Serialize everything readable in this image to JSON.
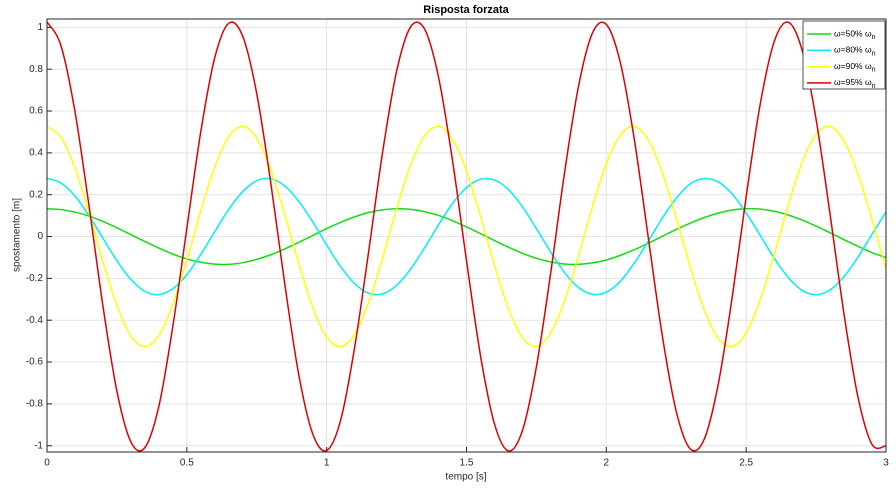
{
  "chart_data": {
    "type": "line",
    "title": "Risposta forzata",
    "x_label": "tempo [s]",
    "y_label": "spostamento [m]",
    "x": [
      0,
      0.05,
      0.1,
      0.15,
      0.2,
      0.25,
      0.3,
      0.35,
      0.4,
      0.45,
      0.5,
      0.55,
      0.6,
      0.65,
      0.7,
      0.75,
      0.8,
      0.85,
      0.9,
      0.95,
      1,
      1.05,
      1.1,
      1.15,
      1.2,
      1.25,
      1.3,
      1.35,
      1.4,
      1.45,
      1.5,
      1.55,
      1.6,
      1.65,
      1.7,
      1.75,
      1.8,
      1.85,
      1.9,
      1.95,
      2,
      2.05,
      2.1,
      2.15,
      2.2,
      2.25,
      2.3,
      2.35,
      2.4,
      2.45,
      2.5,
      2.55,
      2.6,
      2.65,
      2.7,
      2.75,
      2.8,
      2.85,
      2.9,
      2.95,
      3
    ],
    "series": [
      {
        "name": "ω=50% ωn",
        "color": "#11dd11",
        "values": [
          0.133,
          0.129,
          0.117,
          0.098,
          0.072,
          0.042,
          0.009,
          -0.024,
          -0.055,
          -0.084,
          -0.107,
          -0.123,
          -0.132,
          -0.133,
          -0.125,
          -0.109,
          -0.087,
          -0.059,
          -0.028,
          0.005,
          0.038,
          0.068,
          0.094,
          0.115,
          0.128,
          0.133,
          0.13,
          0.119,
          0.101,
          0.076,
          0.046,
          0.014,
          -0.019,
          -0.051,
          -0.08,
          -0.104,
          -0.121,
          -0.131,
          -0.133,
          -0.126,
          -0.112,
          -0.09,
          -0.063,
          -0.032,
          0.001,
          0.034,
          0.064,
          0.091,
          0.112,
          0.127,
          0.133,
          0.131,
          0.121,
          0.103,
          0.079,
          0.05,
          0.018,
          -0.015,
          -0.047,
          -0.077,
          -0.101
        ]
      },
      {
        "name": "ω=80% ωn",
        "color": "#00f0f0",
        "values": [
          0.278,
          0.256,
          0.194,
          0.101,
          -0.008,
          -0.116,
          -0.205,
          -0.262,
          -0.277,
          -0.249,
          -0.182,
          -0.085,
          0.024,
          0.13,
          0.215,
          0.267,
          0.276,
          0.242,
          0.169,
          0.07,
          -0.04,
          -0.144,
          -0.225,
          -0.271,
          -0.274,
          -0.233,
          -0.156,
          -0.054,
          0.056,
          0.158,
          0.234,
          0.274,
          0.27,
          0.224,
          0.142,
          0.038,
          -0.072,
          -0.171,
          -0.243,
          -0.276,
          -0.266,
          -0.214,
          -0.127,
          -0.022,
          0.088,
          0.183,
          0.252,
          0.277,
          0.261,
          0.203,
          0.113,
          0.006,
          -0.103,
          -0.195,
          -0.257,
          -0.278,
          -0.255,
          -0.191,
          -0.098,
          0.011,
          0.118
        ]
      },
      {
        "name": "ω=90% ωn",
        "color": "#ffff00",
        "values": [
          0.526,
          0.474,
          0.327,
          0.115,
          -0.12,
          -0.331,
          -0.476,
          -0.526,
          -0.472,
          -0.324,
          -0.111,
          0.124,
          0.334,
          0.478,
          0.526,
          0.47,
          0.32,
          0.107,
          -0.128,
          -0.338,
          -0.48,
          -0.526,
          -0.468,
          -0.316,
          -0.102,
          0.132,
          0.341,
          0.481,
          0.526,
          0.466,
          0.313,
          0.098,
          -0.137,
          -0.345,
          -0.483,
          -0.525,
          -0.463,
          -0.309,
          -0.094,
          0.141,
          0.348,
          0.485,
          0.526,
          0.462,
          0.306,
          0.089,
          -0.145,
          -0.351,
          -0.486,
          -0.525,
          -0.459,
          -0.302,
          -0.086,
          0.149,
          0.354,
          0.488,
          0.525,
          0.457,
          0.299,
          0.081,
          -0.154
        ]
      },
      {
        "name": "ω=95% ωn",
        "color": "#dd0000",
        "values": [
          1.026,
          0.912,
          0.597,
          0.149,
          -0.332,
          -0.74,
          -0.982,
          -1.009,
          -0.811,
          -0.429,
          0.039,
          0.502,
          0.856,
          1.02,
          0.957,
          0.683,
          0.258,
          -0.225,
          -0.659,
          -0.943,
          -1.023,
          -0.878,
          -0.53,
          -0.073,
          0.403,
          0.79,
          1.002,
          0.992,
          0.762,
          0.363,
          -0.115,
          -0.569,
          -0.896,
          -1.025,
          -0.927,
          -0.622,
          -0.184,
          0.3,
          0.715,
          0.972,
          1.014,
          0.832,
          0.465,
          -0.005,
          -0.473,
          -0.836,
          -1.015,
          -0.969,
          -0.707,
          -0.291,
          0.191,
          0.631,
          0.931,
          1.025,
          0.891,
          0.56,
          0.106,
          -0.372,
          -0.769,
          -0.994,
          -1.0
        ]
      }
    ],
    "xlim": [
      0,
      3
    ],
    "ylim": [
      -1.03,
      1.04
    ],
    "xticks": [
      0,
      0.5,
      1,
      1.5,
      2,
      2.5,
      3
    ],
    "yticks": [
      -1,
      -0.8,
      -0.6,
      -0.4,
      -0.2,
      0,
      0.2,
      0.4,
      0.6,
      0.8,
      1
    ],
    "grid": true,
    "legend": "top-right"
  }
}
